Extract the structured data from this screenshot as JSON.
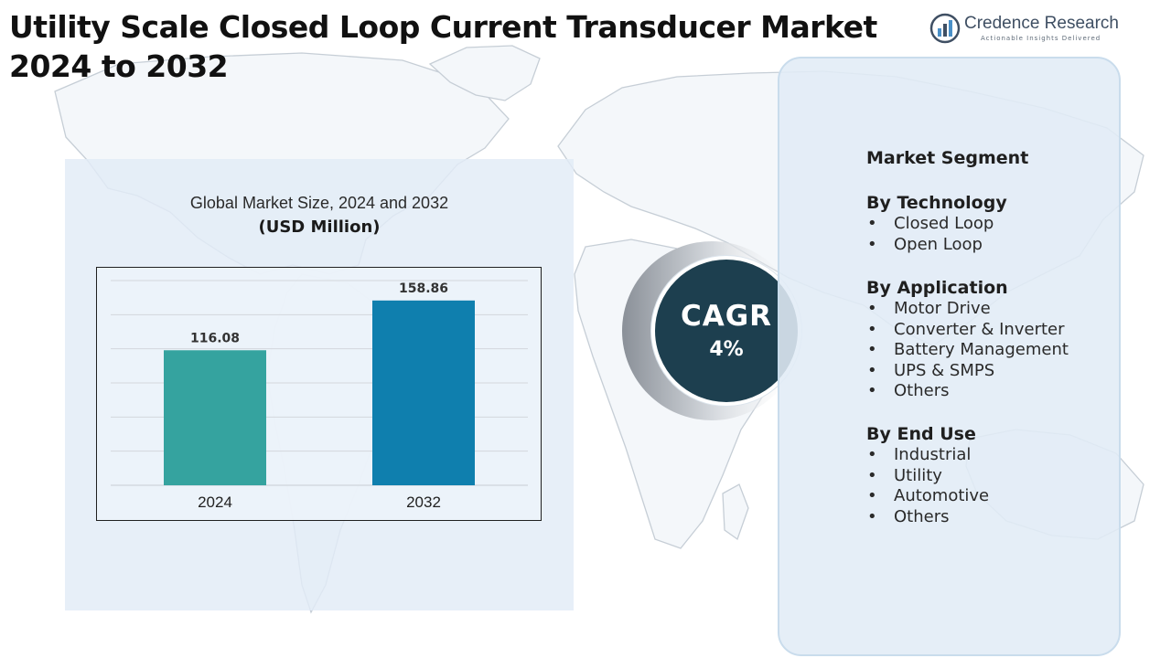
{
  "header": {
    "title": "Utility Scale Closed Loop Current Transducer Market 2024 to 2032"
  },
  "logo": {
    "icon": "bar-chart-logo-icon",
    "name": "Credence Research",
    "tagline": "Actionable Insights Delivered"
  },
  "chart_panel": {
    "title": "Global Market Size, 2024 and 2032",
    "unit": "(USD Million)"
  },
  "chart_data": {
    "type": "bar",
    "title": "Global Market Size, 2024 and 2032",
    "subtitle": "(USD Million)",
    "categories": [
      "2024",
      "2032"
    ],
    "values": [
      116.08,
      158.86
    ],
    "value_labels": [
      "116.08",
      "158.86"
    ],
    "bar_colors": [
      "#35a39f",
      "#0f7fae"
    ],
    "xlabel": "",
    "ylabel": "",
    "ylim": [
      0,
      176
    ],
    "grid": true,
    "legend": "none"
  },
  "cagr": {
    "label": "CAGR",
    "value": "4%"
  },
  "segments": {
    "heading": "Market Segment",
    "groups": [
      {
        "title": "By Technology",
        "items": [
          "Closed Loop",
          "Open Loop"
        ]
      },
      {
        "title": "By Application",
        "items": [
          "Motor Drive",
          "Converter & Inverter",
          "Battery Management",
          "UPS & SMPS",
          "Others"
        ]
      },
      {
        "title": "By End Use",
        "items": [
          "Industrial",
          "Utility",
          "Automotive",
          "Others"
        ]
      }
    ]
  },
  "colors": {
    "panel_background": "#e2ecf6",
    "cagr_circle": "#1d3f4f",
    "title_text": "#111111"
  }
}
